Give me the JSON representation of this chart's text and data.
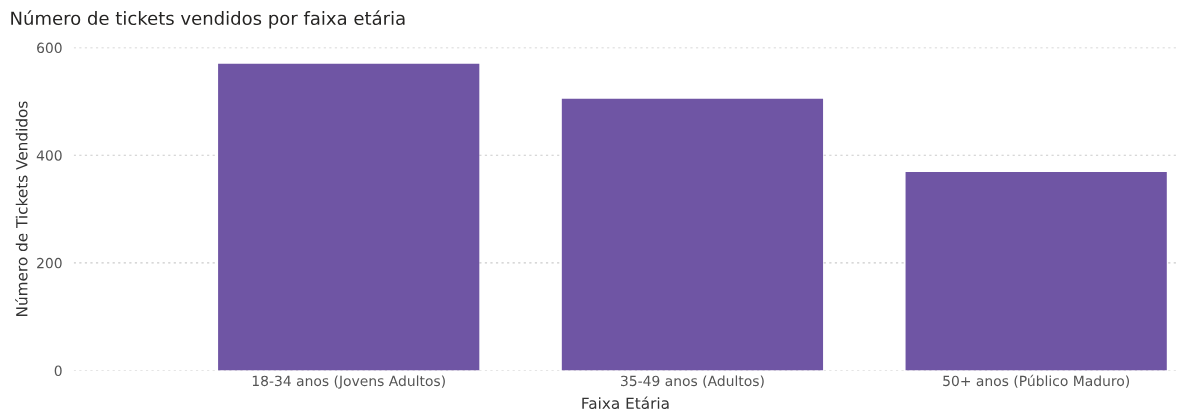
{
  "chart_data": {
    "type": "bar",
    "title": "Número de tickets vendidos por faixa etária",
    "xlabel": "Faixa Etária",
    "ylabel": "Número de Tickets Vendidos",
    "categories": [
      "18-34 anos (Jovens Adultos)",
      "35-49 anos (Adultos)",
      "50+ anos (Público Maduro)"
    ],
    "values": [
      570,
      505,
      369
    ],
    "color": "#6f55a4",
    "ylim": [
      0,
      600
    ],
    "yticks": [
      0,
      200,
      400,
      600
    ],
    "grid": "y",
    "legend": false
  }
}
